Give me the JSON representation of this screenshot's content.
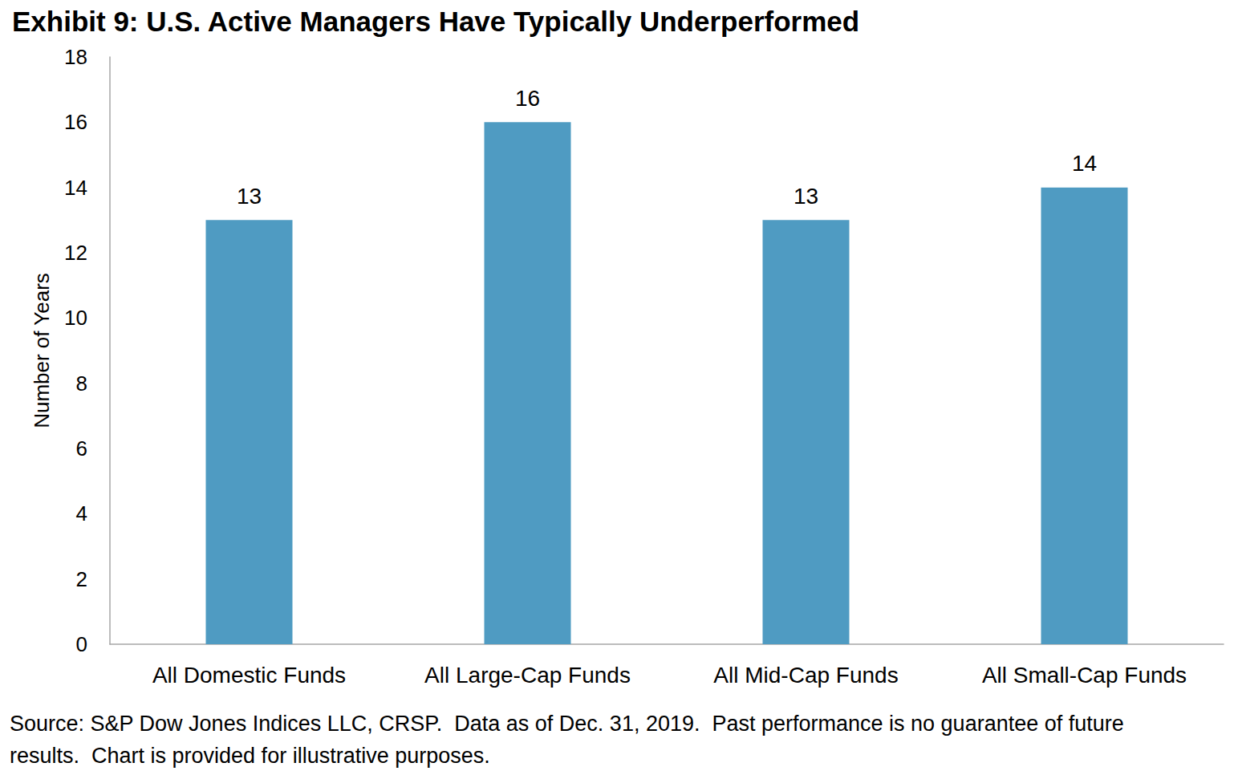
{
  "chart_data": {
    "type": "bar",
    "title": "Exhibit 9: U.S. Active Managers Have Typically Underperformed",
    "y_label": "Number of Years",
    "categories": [
      "All Domestic Funds",
      "All Large-Cap Funds",
      "All Mid-Cap Funds",
      "All Small-Cap Funds"
    ],
    "values": [
      13,
      16,
      13,
      14
    ],
    "color": "#4f9bc2",
    "ylim": [
      0,
      18
    ],
    "yticks": [
      0,
      2,
      4,
      6,
      8,
      10,
      12,
      14,
      16,
      18
    ],
    "grid": false,
    "data_labels": true,
    "annotations": [
      "Source: S&P Dow Jones Indices LLC, CRSP.  Data as of Dec. 31, 2019.  Past performance is no guarantee of future results.  Chart is provided for illustrative purposes."
    ]
  }
}
